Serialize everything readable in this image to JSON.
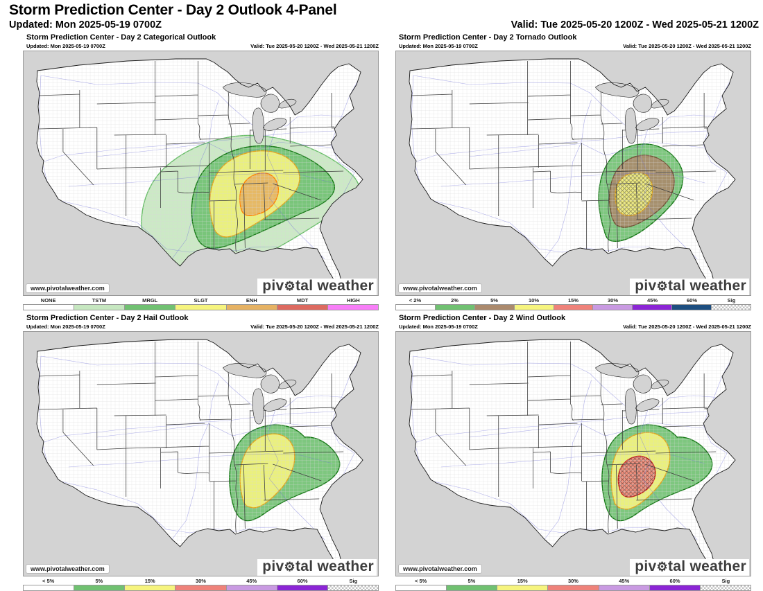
{
  "header": {
    "title": "Storm Prediction Center - Day 2 Outlook 4-Panel",
    "updated": "Updated: Mon 2025-05-19 0700Z",
    "valid": "Valid: Tue 2025-05-20 1200Z - Wed 2025-05-21 1200Z"
  },
  "branding": {
    "watermark": "www.pivotalweather.com",
    "logo_prefix": "piv",
    "logo_gear": "⚙",
    "logo_suffix": "tal weather"
  },
  "panels": [
    {
      "key": "categorical",
      "title": "Storm Prediction Center - Day 2 Categorical Outlook",
      "updated": "Updated: Mon 2025-05-19 0700Z",
      "valid": "Valid: Tue 2025-05-20 1200Z - Wed 2025-05-21 1200Z",
      "areas": [
        "TSTM",
        "MRGL",
        "SLGT",
        "ENH"
      ],
      "legend": [
        {
          "label": "NONE",
          "color": "#ffffff"
        },
        {
          "label": "TSTM",
          "color": "#c6e7c0"
        },
        {
          "label": "MRGL",
          "color": "#70c171"
        },
        {
          "label": "SLGT",
          "color": "#f6f47e"
        },
        {
          "label": "ENH",
          "color": "#e6b263"
        },
        {
          "label": "MDT",
          "color": "#dd6a60"
        },
        {
          "label": "HIGH",
          "color": "#f87ef8"
        }
      ]
    },
    {
      "key": "tornado",
      "title": "Storm Prediction Center - Day 2 Tornado Outlook",
      "updated": "Updated: Mon 2025-05-19 0700Z",
      "valid": "Valid: Tue 2025-05-20 1200Z - Wed 2025-05-21 1200Z",
      "areas": [
        "2%",
        "5%",
        "10%",
        "Sig (hatched) within 10%"
      ],
      "legend": [
        {
          "label": "< 2%",
          "color": "#ffffff"
        },
        {
          "label": "2%",
          "color": "#70c171"
        },
        {
          "label": "5%",
          "color": "#ab8a6d"
        },
        {
          "label": "10%",
          "color": "#f6f47e"
        },
        {
          "label": "15%",
          "color": "#ef827a"
        },
        {
          "label": "30%",
          "color": "#c99ae2"
        },
        {
          "label": "45%",
          "color": "#8b25d5"
        },
        {
          "label": "60%",
          "color": "#1d4e80"
        },
        {
          "label": "Sig",
          "hatch": true
        }
      ]
    },
    {
      "key": "hail",
      "title": "Storm Prediction Center - Day 2 Hail Outlook",
      "updated": "Updated: Mon 2025-05-19 0700Z",
      "valid": "Valid: Tue 2025-05-20 1200Z - Wed 2025-05-21 1200Z",
      "areas": [
        "5%",
        "15%"
      ],
      "legend": [
        {
          "label": "< 5%",
          "color": "#ffffff"
        },
        {
          "label": "5%",
          "color": "#70c171"
        },
        {
          "label": "15%",
          "color": "#f6f47e"
        },
        {
          "label": "30%",
          "color": "#ef827a"
        },
        {
          "label": "45%",
          "color": "#c99ae2"
        },
        {
          "label": "60%",
          "color": "#8b25d5"
        },
        {
          "label": "Sig",
          "hatch": true
        }
      ]
    },
    {
      "key": "wind",
      "title": "Storm Prediction Center - Day 2 Wind Outlook",
      "updated": "Updated: Mon 2025-05-19 0700Z",
      "valid": "Valid: Tue 2025-05-20 1200Z - Wed 2025-05-21 1200Z",
      "areas": [
        "5%",
        "15%",
        "30%",
        "Sig (hatched) within 30%"
      ],
      "legend": [
        {
          "label": "< 5%",
          "color": "#ffffff"
        },
        {
          "label": "5%",
          "color": "#70c171"
        },
        {
          "label": "15%",
          "color": "#f6f47e"
        },
        {
          "label": "30%",
          "color": "#ef827a"
        },
        {
          "label": "45%",
          "color": "#c99ae2"
        },
        {
          "label": "60%",
          "color": "#8b25d5"
        },
        {
          "label": "Sig",
          "hatch": true
        }
      ]
    }
  ],
  "map_colors": {
    "outside": "#d3d3d3",
    "land": "#ffffff",
    "county": "#d8d8d8",
    "state": "#3f3f3f",
    "road": "#7070d8",
    "outline": "#1a1a1a",
    "tstm": "#c6e7c0",
    "tstm_line": "#67bd67",
    "mrgl": "#70c171",
    "mrgl_line": "#187a18",
    "slgt": "#f6f47e",
    "slgt_line": "#dfa51f",
    "enh": "#e6b263",
    "enh_line": "#ff8200",
    "torn5": "#ab8a6d",
    "torn5_line": "#704f33",
    "prob15": "#ef827a",
    "prob15_line": "#c9211b",
    "hatch": "#2e2e2e"
  }
}
